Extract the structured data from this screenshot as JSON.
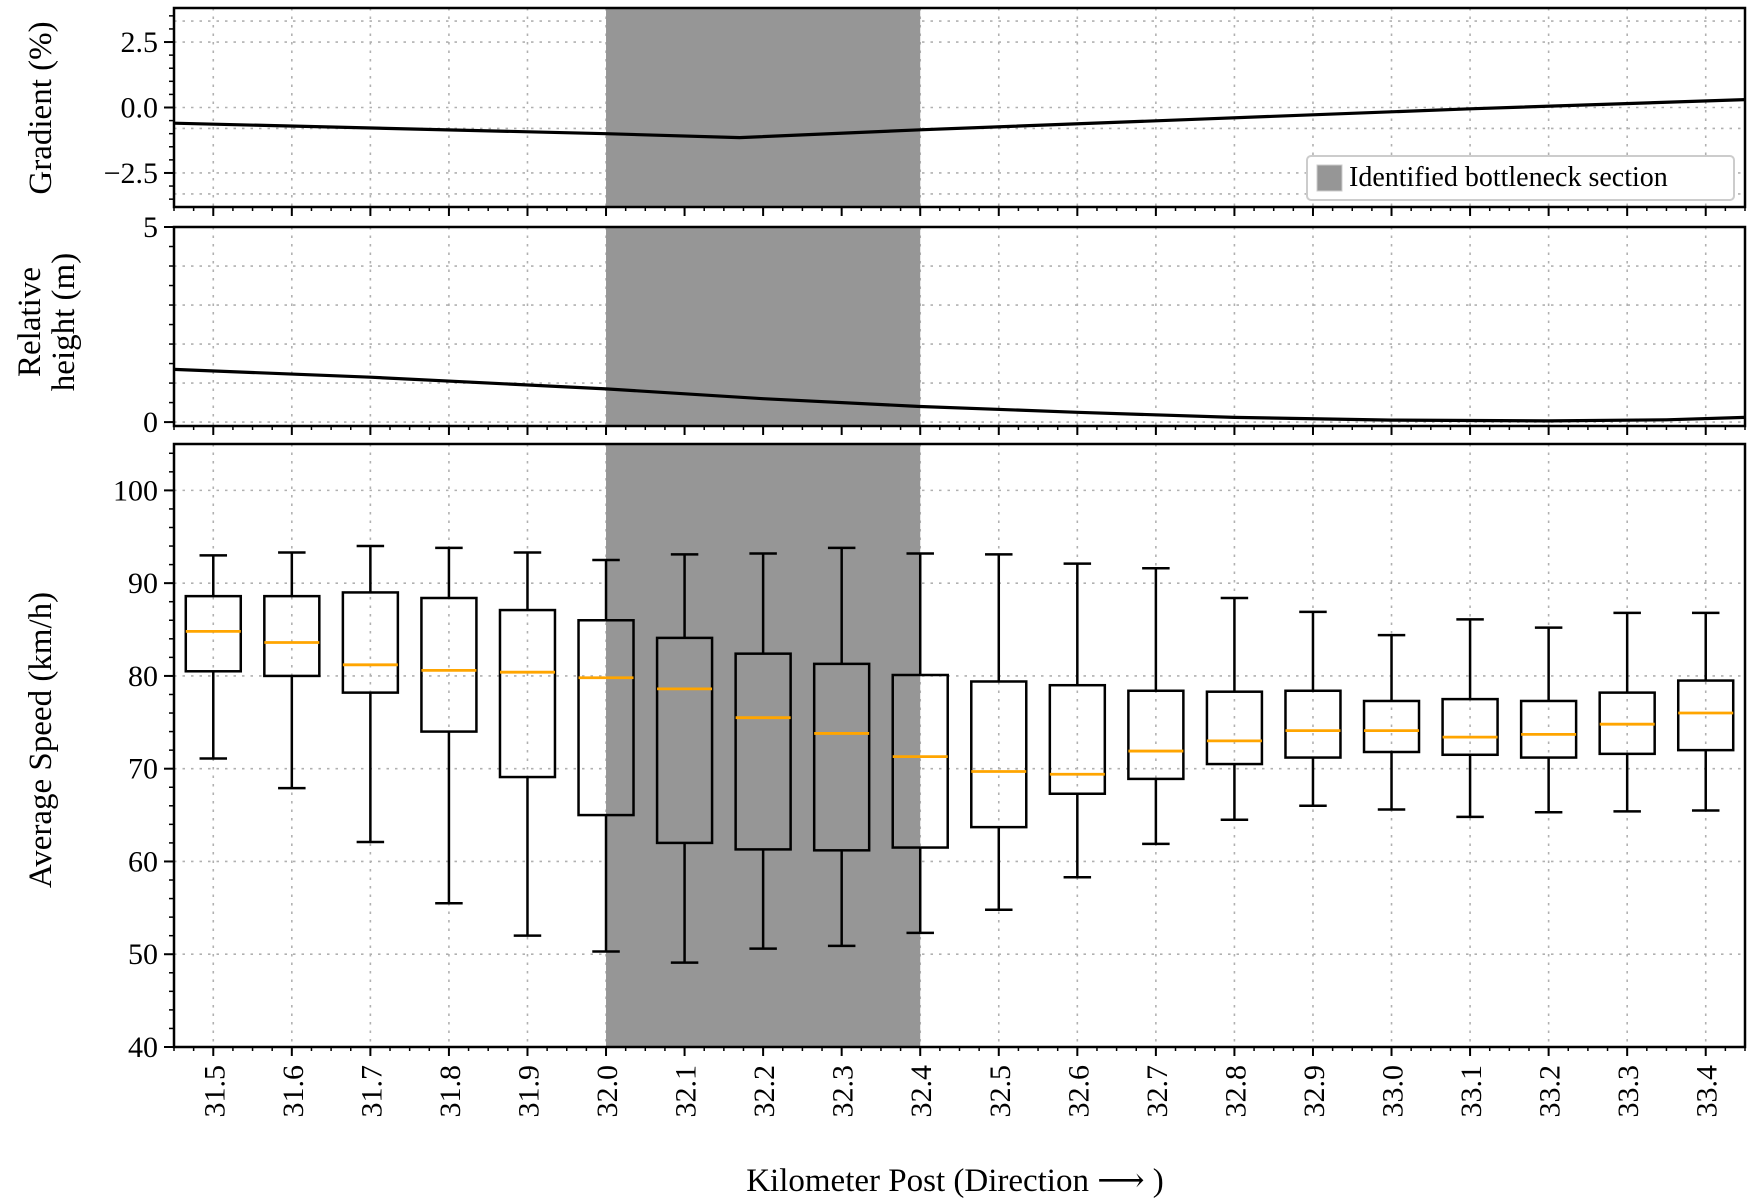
{
  "chart_data": [
    {
      "type": "line",
      "ylabel": "Gradient (%)",
      "ylim": [
        -3.8,
        3.8
      ],
      "yticks": [
        2.5,
        0.0,
        -2.5
      ],
      "ytick_labels": [
        "2.5",
        "0.0",
        "−2.5"
      ],
      "xlim": [
        31.45,
        33.45
      ],
      "grid": true,
      "line_color": "#000000",
      "legend": {
        "label": "Identified bottleneck section",
        "location": "lower right",
        "patch_color": "#969696"
      },
      "series": [
        {
          "x": [
            31.45,
            32.0,
            32.17,
            32.4,
            32.75,
            33.1,
            33.45
          ],
          "y": [
            -0.6,
            -1.0,
            -1.15,
            -0.85,
            -0.45,
            -0.05,
            0.3
          ]
        }
      ]
    },
    {
      "type": "line",
      "ylabel_lines": [
        "Relative",
        "height (m)"
      ],
      "ylim": [
        -0.1,
        5.0
      ],
      "yticks": [
        5,
        0
      ],
      "ytick_labels": [
        "5",
        "0"
      ],
      "xlim": [
        31.45,
        33.45
      ],
      "grid": true,
      "line_color": "#000000",
      "series": [
        {
          "x": [
            31.45,
            31.7,
            32.0,
            32.2,
            32.4,
            32.6,
            32.8,
            33.0,
            33.2,
            33.35,
            33.45
          ],
          "y": [
            1.35,
            1.15,
            0.85,
            0.6,
            0.4,
            0.25,
            0.12,
            0.05,
            0.03,
            0.06,
            0.12
          ]
        }
      ]
    },
    {
      "type": "box",
      "xlabel": "Kilometer Post (Direction ⟶ )",
      "ylabel": "Average Speed (km/h)",
      "ylim": [
        40,
        105
      ],
      "yticks": [
        40,
        50,
        60,
        70,
        80,
        90,
        100
      ],
      "ytick_labels": [
        "40",
        "50",
        "60",
        "70",
        "80",
        "90",
        "100"
      ],
      "xlim": [
        31.45,
        33.45
      ],
      "grid": true,
      "median_color": "#ffa500",
      "highlight": {
        "from": 32.0,
        "to": 32.4,
        "color": "#969696"
      },
      "categories": [
        "31.5",
        "31.6",
        "31.7",
        "31.8",
        "31.9",
        "32.0",
        "32.1",
        "32.2",
        "32.3",
        "32.4",
        "32.5",
        "32.6",
        "32.7",
        "32.8",
        "32.9",
        "33.0",
        "33.1",
        "33.2",
        "33.3",
        "33.4"
      ],
      "boxes": [
        {
          "whislo": 71.1,
          "q1": 80.5,
          "med": 84.8,
          "q3": 88.6,
          "whishi": 93.0
        },
        {
          "whislo": 67.9,
          "q1": 80.0,
          "med": 83.6,
          "q3": 88.6,
          "whishi": 93.3
        },
        {
          "whislo": 62.1,
          "q1": 78.2,
          "med": 81.2,
          "q3": 89.0,
          "whishi": 94.0
        },
        {
          "whislo": 55.5,
          "q1": 74.0,
          "med": 80.6,
          "q3": 88.4,
          "whishi": 93.8
        },
        {
          "whislo": 52.0,
          "q1": 69.1,
          "med": 80.4,
          "q3": 87.1,
          "whishi": 93.3
        },
        {
          "whislo": 50.3,
          "q1": 65.0,
          "med": 79.8,
          "q3": 86.0,
          "whishi": 92.5
        },
        {
          "whislo": 49.1,
          "q1": 62.0,
          "med": 78.6,
          "q3": 84.1,
          "whishi": 93.1
        },
        {
          "whislo": 50.6,
          "q1": 61.3,
          "med": 75.5,
          "q3": 82.4,
          "whishi": 93.2
        },
        {
          "whislo": 50.9,
          "q1": 61.2,
          "med": 73.8,
          "q3": 81.3,
          "whishi": 93.8
        },
        {
          "whislo": 52.3,
          "q1": 61.5,
          "med": 71.3,
          "q3": 80.1,
          "whishi": 93.2
        },
        {
          "whislo": 54.8,
          "q1": 63.7,
          "med": 69.7,
          "q3": 79.4,
          "whishi": 93.1
        },
        {
          "whislo": 58.3,
          "q1": 67.3,
          "med": 69.4,
          "q3": 79.0,
          "whishi": 92.1
        },
        {
          "whislo": 61.9,
          "q1": 68.9,
          "med": 71.9,
          "q3": 78.4,
          "whishi": 91.6
        },
        {
          "whislo": 64.5,
          "q1": 70.5,
          "med": 73.0,
          "q3": 78.3,
          "whishi": 88.4
        },
        {
          "whislo": 66.0,
          "q1": 71.2,
          "med": 74.1,
          "q3": 78.4,
          "whishi": 86.9
        },
        {
          "whislo": 65.6,
          "q1": 71.8,
          "med": 74.1,
          "q3": 77.3,
          "whishi": 84.4
        },
        {
          "whislo": 64.8,
          "q1": 71.5,
          "med": 73.4,
          "q3": 77.5,
          "whishi": 86.1
        },
        {
          "whislo": 65.3,
          "q1": 71.2,
          "med": 73.7,
          "q3": 77.3,
          "whishi": 85.2
        },
        {
          "whislo": 65.4,
          "q1": 71.6,
          "med": 74.8,
          "q3": 78.2,
          "whishi": 86.8
        },
        {
          "whislo": 65.5,
          "q1": 72.0,
          "med": 76.0,
          "q3": 79.5,
          "whishi": 86.8
        }
      ]
    }
  ]
}
